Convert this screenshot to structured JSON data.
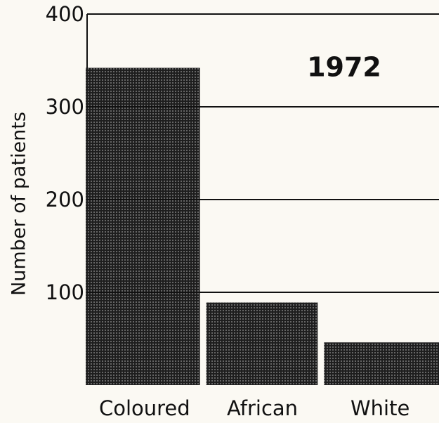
{
  "chart_data": {
    "type": "bar",
    "annotation": "1972",
    "y_label": "Number of patients",
    "categories": [
      "Coloured",
      "African",
      "White"
    ],
    "values": [
      342,
      89,
      46
    ],
    "color": "#2b2b2b",
    "ylim": [
      0,
      400
    ],
    "yticks": [
      100,
      200,
      300,
      400
    ],
    "grid": true
  }
}
